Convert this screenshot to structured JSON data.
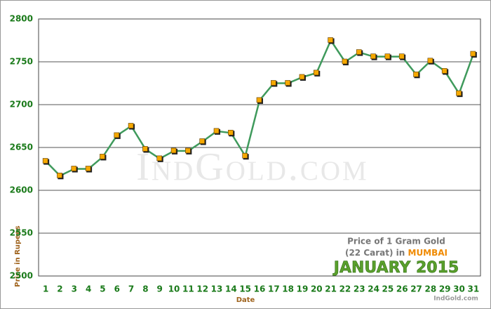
{
  "chart_data": {
    "type": "line",
    "categories": [
      "1",
      "2",
      "3",
      "4",
      "5",
      "6",
      "7",
      "8",
      "9",
      "10",
      "11",
      "12",
      "13",
      "14",
      "15",
      "16",
      "17",
      "18",
      "19",
      "20",
      "21",
      "22",
      "23",
      "24",
      "25",
      "26",
      "27",
      "28",
      "29",
      "30",
      "31"
    ],
    "series": [
      {
        "name": "Price",
        "color": "#3f9a5c",
        "marker_color": "#f5a800",
        "values": [
          2634,
          2617,
          2625,
          2625,
          2639,
          2664,
          2675,
          2648,
          2637,
          2646,
          2646,
          2657,
          2669,
          2667,
          2640,
          2705,
          2725,
          2725,
          2732,
          2737,
          2775,
          2750,
          2761,
          2756,
          2756,
          2756,
          2735,
          2751,
          2739,
          2713,
          2759
        ]
      }
    ],
    "ylim": [
      2500,
      2800
    ],
    "yticks": [
      2500,
      2550,
      2600,
      2650,
      2700,
      2750,
      2800
    ],
    "grid": true,
    "ylabel": "Price in Rupees",
    "xlabel": "Date",
    "annotation": {
      "line1": "Price of 1 Gram Gold",
      "line2": "(22 Carat) in",
      "city": "MUMBAI",
      "month": "JANUARY 2015"
    },
    "watermark": "IndGold.com",
    "credit": "IndGold.com"
  }
}
